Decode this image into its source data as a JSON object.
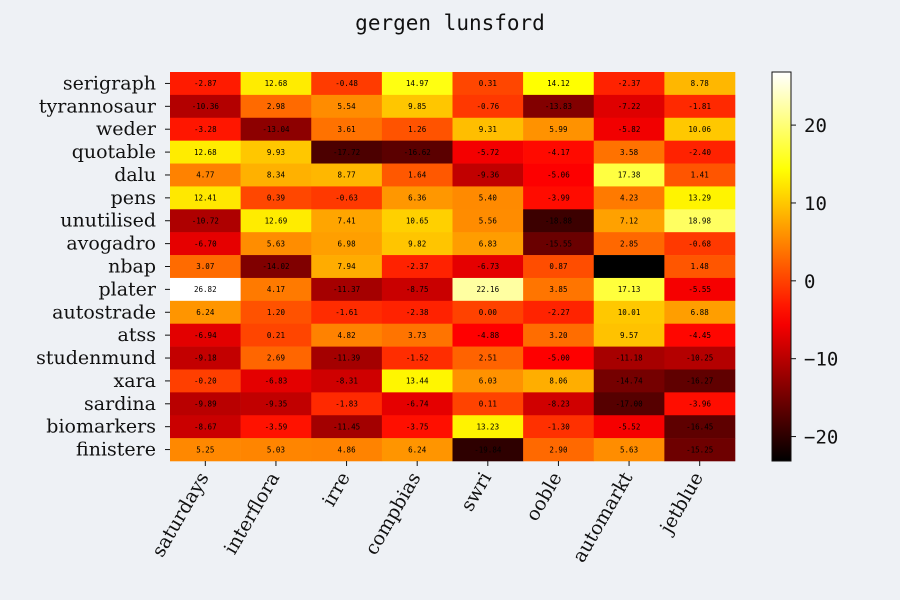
{
  "chart_data": {
    "type": "heatmap",
    "title": "gergen lunsford",
    "xlabel": "",
    "ylabel": "",
    "x_categories": [
      "saturdays",
      "interflora",
      "irre",
      "compbias",
      "swri",
      "ooble",
      "automarkt",
      "jetblue"
    ],
    "y_categories": [
      "serigraph",
      "tyrannosaur",
      "weder",
      "quotable",
      "dalu",
      "pens",
      "unutilised",
      "avogadro",
      "nbap",
      "plater",
      "autostrade",
      "atss",
      "studenmund",
      "xara",
      "sardina",
      "biomarkers",
      "finistere"
    ],
    "values": [
      [
        -2.87,
        12.68,
        -0.48,
        14.97,
        0.31,
        14.12,
        -2.37,
        8.78
      ],
      [
        -10.36,
        2.98,
        5.54,
        9.85,
        -0.76,
        -13.83,
        -7.22,
        -1.81
      ],
      [
        -3.28,
        -13.04,
        3.61,
        1.26,
        9.31,
        5.99,
        -5.82,
        10.06
      ],
      [
        12.68,
        9.93,
        -17.72,
        -16.62,
        -5.72,
        -4.17,
        3.58,
        -2.4
      ],
      [
        4.77,
        8.34,
        8.77,
        1.64,
        -9.36,
        -5.06,
        17.38,
        1.41
      ],
      [
        12.41,
        0.39,
        -0.63,
        6.36,
        5.4,
        -3.99,
        4.23,
        13.29
      ],
      [
        -10.72,
        12.69,
        7.41,
        10.65,
        5.56,
        -18.88,
        7.12,
        18.98
      ],
      [
        -6.7,
        5.63,
        6.98,
        9.82,
        6.83,
        -15.55,
        2.85,
        -0.68
      ],
      [
        3.07,
        -14.02,
        7.94,
        -2.37,
        -6.73,
        0.87,
        -23.14,
        1.48
      ],
      [
        26.82,
        4.17,
        -11.37,
        -8.75,
        22.16,
        3.85,
        17.13,
        -5.55
      ],
      [
        6.24,
        1.2,
        -1.61,
        -2.38,
        0.0,
        -2.27,
        10.01,
        6.88
      ],
      [
        -6.94,
        0.21,
        4.82,
        3.73,
        -4.88,
        3.2,
        9.57,
        -4.45
      ],
      [
        -9.18,
        2.69,
        -11.39,
        -1.52,
        2.51,
        -5.0,
        -11.18,
        -10.25
      ],
      [
        -0.2,
        -6.83,
        -8.31,
        13.44,
        6.03,
        8.06,
        -14.74,
        -16.27
      ],
      [
        -9.89,
        -9.35,
        -1.83,
        -6.74,
        0.11,
        -8.23,
        -17.0,
        -3.96
      ],
      [
        -8.67,
        -3.59,
        -11.45,
        -3.75,
        13.23,
        -1.3,
        -5.52,
        -16.45
      ],
      [
        5.25,
        5.03,
        4.86,
        6.24,
        -19.84,
        2.9,
        5.63,
        -15.25
      ]
    ],
    "colormap": "hot",
    "vmin": -23.14,
    "vmax": 26.82,
    "colorbar_ticks": [
      -20,
      -10,
      0,
      10,
      20
    ],
    "colorbar_tick_labels": [
      "−20",
      "−10",
      "0",
      "10",
      "20"
    ],
    "grid": false,
    "background": "#eef1f5"
  }
}
